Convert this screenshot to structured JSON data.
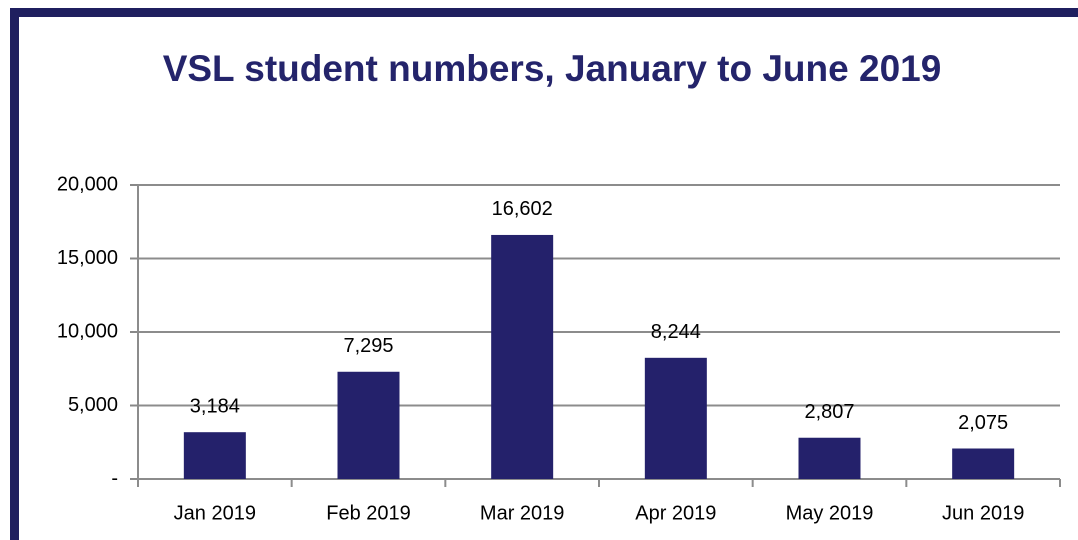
{
  "chart_data": {
    "type": "bar",
    "title": "VSL student numbers, January to June 2019",
    "categories": [
      "Jan 2019",
      "Feb 2019",
      "Mar 2019",
      "Apr 2019",
      "May 2019",
      "Jun 2019"
    ],
    "values": [
      3184,
      7295,
      16602,
      8244,
      2807,
      2075
    ],
    "value_labels": [
      "3,184",
      "7,295",
      "16,602",
      "8,244",
      "2,807",
      "2,075"
    ],
    "color": "#24216b",
    "ylim": [
      0,
      20000
    ],
    "yticks": [
      {
        "value": 0,
        "label": "-"
      },
      {
        "value": 5000,
        "label": "5,000"
      },
      {
        "value": 10000,
        "label": "10,000"
      },
      {
        "value": 15000,
        "label": "15,000"
      },
      {
        "value": 20000,
        "label": "20,000"
      }
    ],
    "grid": true
  }
}
